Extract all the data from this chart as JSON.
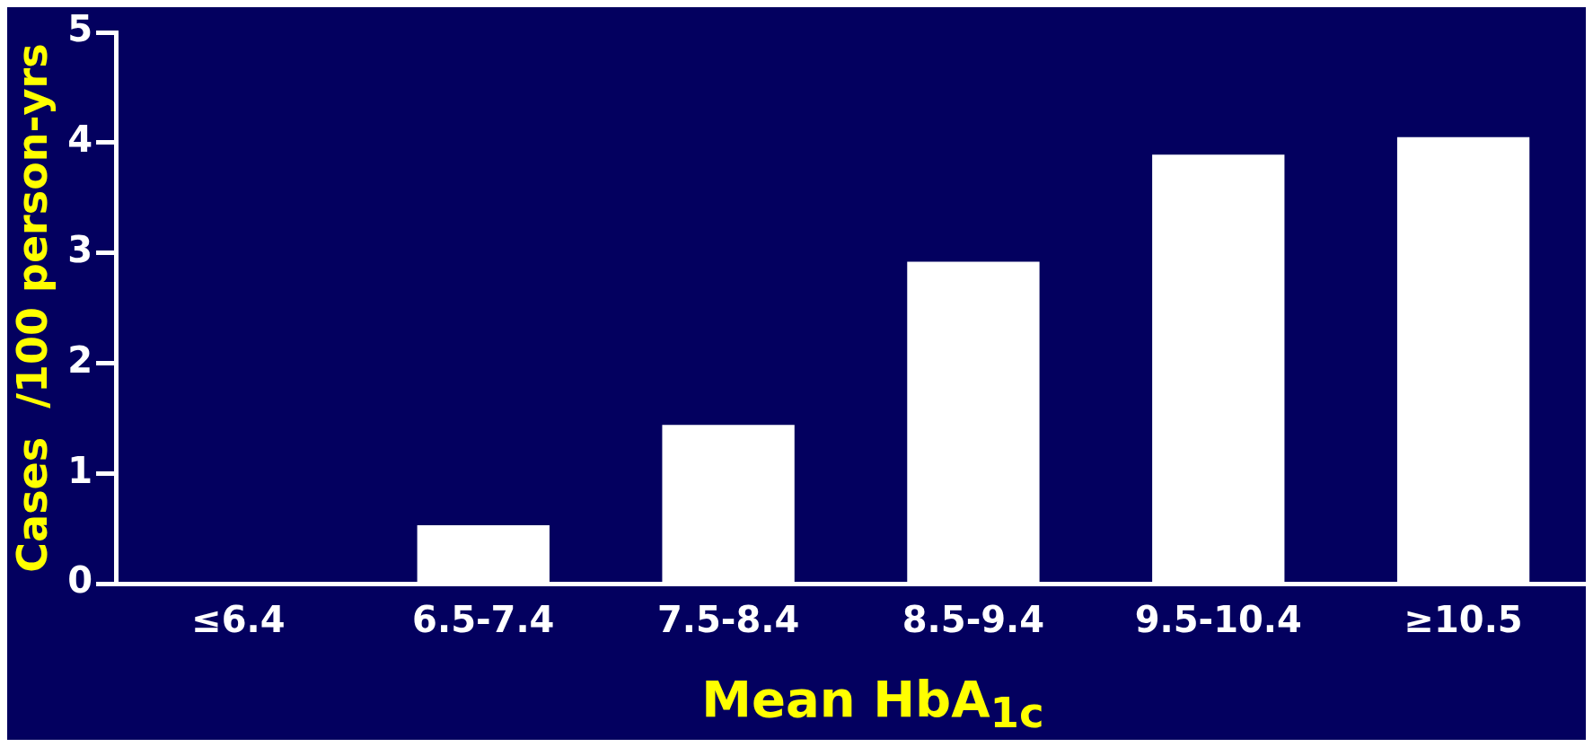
{
  "chart_data": {
    "type": "bar",
    "xlabel": "Mean HbA$_{1c}$",
    "ylabel": "Cases  /100 person-yrs",
    "categories": [
      "≤6.4",
      "6.5-7.4",
      "7.5-8.4",
      "8.5-9.4",
      "9.5-10.4",
      "≥10.5"
    ],
    "values": [
      0,
      0.53,
      1.44,
      2.92,
      3.89,
      4.05
    ],
    "color": "#ffffff",
    "ylim": [
      0,
      5
    ],
    "yticks": [
      0,
      1,
      2,
      3,
      4,
      5
    ],
    "grid": false,
    "legend": false
  }
}
